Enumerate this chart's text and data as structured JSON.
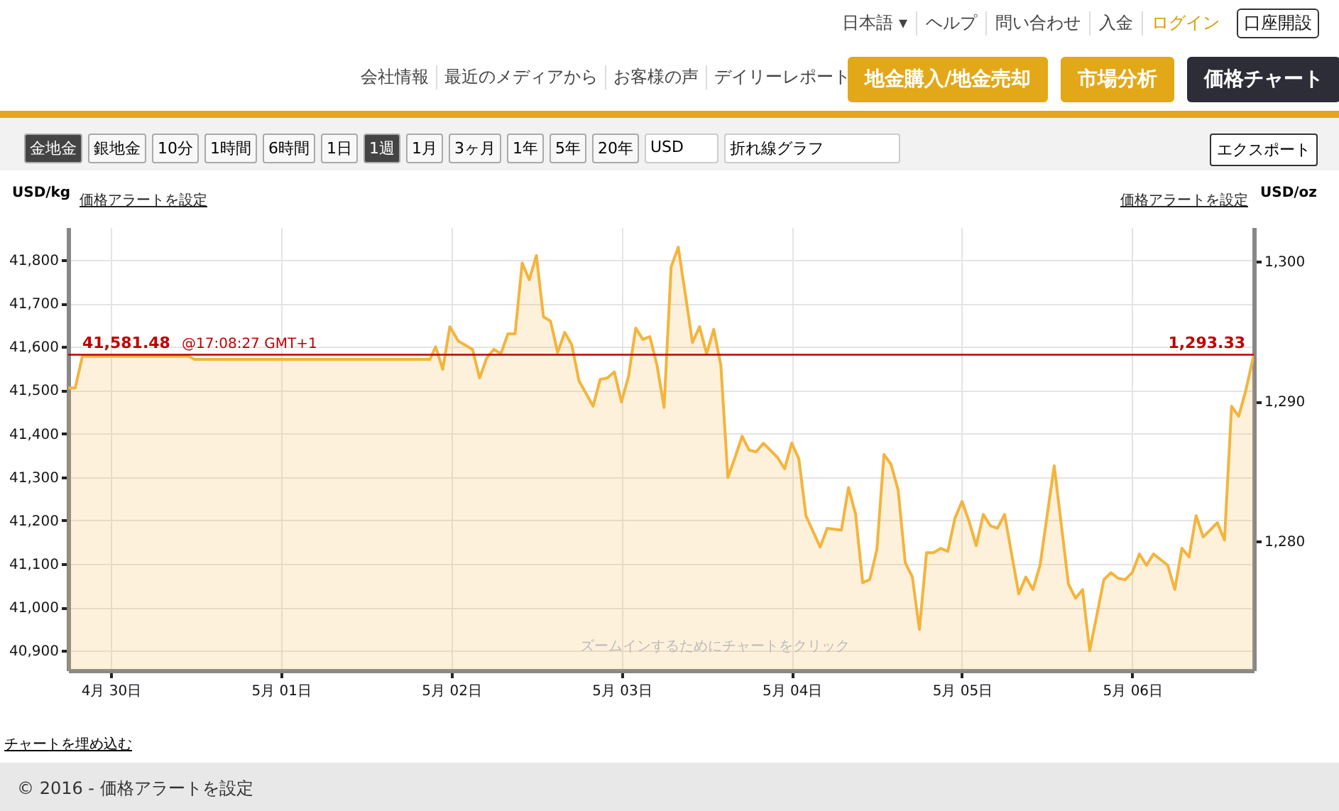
{
  "chart_data": {
    "type": "area",
    "color": "#f4b43c",
    "ylabel": "USD/kg",
    "y2label": "USD/oz",
    "x": [
      "2016-04-29T18:00",
      "2016-04-29T19:00",
      "2016-04-29T20:00",
      "2016-04-30T11:00",
      "2016-04-30T11:48",
      "2016-05-01T21:00",
      "2016-05-01T21:48",
      "2016-05-01T22:48",
      "2016-05-01T23:48",
      "2016-05-02T01:00",
      "2016-05-02T03:00",
      "2016-05-02T04:00",
      "2016-05-02T05:00",
      "2016-05-02T06:00",
      "2016-05-02T07:00",
      "2016-05-02T08:00",
      "2016-05-02T09:00",
      "2016-05-02T10:00",
      "2016-05-02T11:00",
      "2016-05-02T12:00",
      "2016-05-02T13:00",
      "2016-05-02T14:00",
      "2016-05-02T15:00",
      "2016-05-02T16:00",
      "2016-05-02T17:00",
      "2016-05-02T18:00",
      "2016-05-02T20:00",
      "2016-05-02T21:00",
      "2016-05-02T22:00",
      "2016-05-02T23:00",
      "2016-05-03T00:00",
      "2016-05-03T01:00",
      "2016-05-03T02:00",
      "2016-05-03T03:00",
      "2016-05-03T04:00",
      "2016-05-03T05:00",
      "2016-05-03T06:00",
      "2016-05-03T07:00",
      "2016-05-03T08:00",
      "2016-05-03T09:00",
      "2016-05-03T10:00",
      "2016-05-03T11:00",
      "2016-05-03T12:00",
      "2016-05-03T13:00",
      "2016-05-03T14:00",
      "2016-05-03T15:00",
      "2016-05-03T16:00",
      "2016-05-03T17:00",
      "2016-05-03T18:00",
      "2016-05-03T19:00",
      "2016-05-03T20:00",
      "2016-05-03T22:00",
      "2016-05-03T23:00",
      "2016-05-04T00:00",
      "2016-05-04T01:00",
      "2016-05-04T02:00",
      "2016-05-04T04:00",
      "2016-05-04T05:00",
      "2016-05-04T07:00",
      "2016-05-04T08:00",
      "2016-05-04T09:00",
      "2016-05-04T10:00",
      "2016-05-04T11:00",
      "2016-05-04T12:00",
      "2016-05-04T13:00",
      "2016-05-04T14:00",
      "2016-05-04T15:00",
      "2016-05-04T16:00",
      "2016-05-04T17:00",
      "2016-05-04T18:00",
      "2016-05-04T19:00",
      "2016-05-04T20:00",
      "2016-05-04T21:00",
      "2016-05-04T22:00",
      "2016-05-04T23:00",
      "2016-05-05T00:00",
      "2016-05-05T01:00",
      "2016-05-05T02:00",
      "2016-05-05T03:00",
      "2016-05-05T04:00",
      "2016-05-05T05:00",
      "2016-05-05T06:00",
      "2016-05-05T08:00",
      "2016-05-05T09:00",
      "2016-05-05T10:00",
      "2016-05-05T11:00",
      "2016-05-05T13:00",
      "2016-05-05T15:00",
      "2016-05-05T16:00",
      "2016-05-05T17:00",
      "2016-05-05T18:00",
      "2016-05-05T20:00",
      "2016-05-05T21:00",
      "2016-05-05T22:00",
      "2016-05-05T23:00",
      "2016-05-06T00:00",
      "2016-05-06T01:00",
      "2016-05-06T02:00",
      "2016-05-06T03:00",
      "2016-05-06T05:00",
      "2016-05-06T06:00",
      "2016-05-06T07:00",
      "2016-05-06T08:00",
      "2016-05-06T09:00",
      "2016-05-06T10:00",
      "2016-05-06T12:00",
      "2016-05-06T13:00",
      "2016-05-06T14:00",
      "2016-05-06T15:00",
      "2016-05-06T16:00",
      "2016-05-06T17:08"
    ],
    "values": [
      41505,
      41505,
      41578,
      41578,
      41571,
      41571,
      41600,
      41548,
      41646,
      41613,
      41594,
      41528,
      41574,
      41594,
      41584,
      41630,
      41630,
      41793,
      41754,
      41810,
      41669,
      41659,
      41587,
      41633,
      41604,
      41522,
      41463,
      41525,
      41528,
      41542,
      41473,
      41532,
      41643,
      41617,
      41623,
      41558,
      41460,
      41784,
      41829,
      41721,
      41610,
      41646,
      41584,
      41640,
      41558,
      41299,
      41345,
      41394,
      41362,
      41358,
      41378,
      41345,
      41319,
      41378,
      41342,
      41211,
      41139,
      41182,
      41178,
      41276,
      41214,
      41057,
      41064,
      41133,
      41352,
      41329,
      41270,
      41103,
      41070,
      40949,
      41126,
      41126,
      41136,
      41129,
      41205,
      41244,
      41198,
      41142,
      41214,
      41188,
      41182,
      41214,
      41031,
      41070,
      41041,
      41097,
      41326,
      41054,
      41021,
      41041,
      40900,
      41064,
      41080,
      41067,
      41064,
      41080,
      41123,
      41097,
      41123,
      41097,
      41041,
      41136,
      41116,
      41211,
      41162,
      41195,
      41155,
      41463,
      41440,
      41499,
      41581.48
    ],
    "xlim": [
      "2016-04-29T18:00",
      "2016-05-06T17:08"
    ],
    "xticks": [
      {
        "value": "2016-04-30",
        "label": "4月 30日"
      },
      {
        "value": "2016-05-01",
        "label": "5月 01日"
      },
      {
        "value": "2016-05-02",
        "label": "5月 02日"
      },
      {
        "value": "2016-05-03",
        "label": "5月 03日"
      },
      {
        "value": "2016-05-04",
        "label": "5月 04日"
      },
      {
        "value": "2016-05-05",
        "label": "5月 05日"
      },
      {
        "value": "2016-05-06",
        "label": "5月 06日"
      }
    ],
    "ylim": [
      40855,
      41875
    ],
    "yticks": [
      {
        "value": 40900,
        "label": "40,900"
      },
      {
        "value": 41000,
        "label": "41,000"
      },
      {
        "value": 41100,
        "label": "41,100"
      },
      {
        "value": 41200,
        "label": "41,200"
      },
      {
        "value": 41300,
        "label": "41,300"
      },
      {
        "value": 41400,
        "label": "41,400"
      },
      {
        "value": 41500,
        "label": "41,500"
      },
      {
        "value": 41600,
        "label": "41,600"
      },
      {
        "value": 41700,
        "label": "41,700"
      },
      {
        "value": 41800,
        "label": "41,800"
      }
    ],
    "y2lim": [
      1270.74,
      1302.46
    ],
    "y2ticks": [
      {
        "value": 1280,
        "label": "1,280"
      },
      {
        "value": 1290,
        "label": "1,290"
      },
      {
        "value": 1300,
        "label": "1,300"
      }
    ],
    "grid": true,
    "ref_lines": [
      {
        "axis": "y",
        "value": 41581.48,
        "label": "41,581.48",
        "color": "#c00000"
      }
    ],
    "annotations": [
      "@17:08:27 GMT+1",
      "価格アラートを設定",
      "価格アラートを設定",
      "ズームインするためにチャートをクリック",
      "チャートを埋め込む",
      "© 2016 - 価格アラートを設定",
      "日本語 ▾",
      "ヘルプ",
      "問い合わせ",
      "入金",
      "ログイン",
      "口座開設",
      "会社情報",
      "最近のメディアから",
      "お客様の声",
      "デイリーレポート",
      "地金購入/地金売却",
      "市場分析",
      "価格チャート",
      "金地金",
      "銀地金",
      "10分",
      "1時間",
      "6時間",
      "1日",
      "1週",
      "1月",
      "3ヶ月",
      "1年",
      "5年",
      "20年",
      "USD",
      "折れ線グラフ",
      "エクスポート",
      {
        "text": "1,293.33",
        "x": "2016-05-06T17:08",
        "y": 41581.48
      }
    ]
  }
}
